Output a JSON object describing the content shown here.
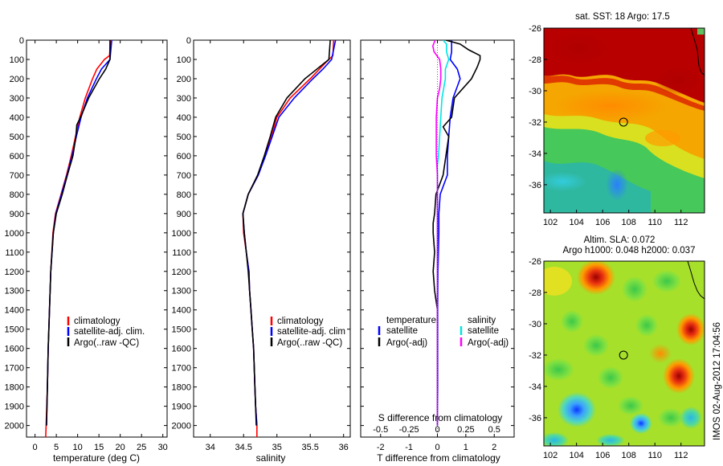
{
  "chart_data": [
    {
      "type": "line",
      "name": "temperature_profile",
      "xlabel": "temperature (deg C)",
      "xlim": [
        -2,
        31
      ],
      "xticks": [
        0,
        5,
        10,
        15,
        20,
        25,
        30
      ],
      "ylim": [
        2060,
        0
      ],
      "yticks": [
        0,
        100,
        200,
        300,
        400,
        500,
        600,
        700,
        800,
        900,
        1000,
        1100,
        1200,
        1300,
        1400,
        1500,
        1600,
        1700,
        1800,
        1900,
        2000
      ],
      "legend": [
        "climatology",
        "satellite-adj. clim.",
        "Argo(..raw -QC)"
      ],
      "series": [
        {
          "name": "climatology",
          "color": "#ff0000",
          "depth": [
            0,
            80,
            100,
            150,
            200,
            300,
            400,
            500,
            600,
            700,
            800,
            900,
            1000,
            1200,
            1400,
            1600,
            1800,
            2000,
            2060
          ],
          "values": [
            17.7,
            17.5,
            16.3,
            14.5,
            13.5,
            11.8,
            10.5,
            9.5,
            8.5,
            7.4,
            6.1,
            4.8,
            4.2,
            3.7,
            3.4,
            3.1,
            2.9,
            2.6,
            2.5
          ]
        },
        {
          "name": "satellite-adj. clim.",
          "color": "#0000ff",
          "depth": [
            0,
            100,
            150,
            200,
            300,
            400,
            500,
            600,
            700,
            800,
            900,
            1000,
            1200,
            1400,
            1600,
            1800,
            2000
          ],
          "values": [
            18.0,
            17.6,
            15.6,
            14.4,
            12.3,
            10.8,
            9.7,
            8.7,
            7.5,
            6.2,
            4.9,
            4.3,
            3.7,
            3.4,
            3.1,
            2.9,
            2.7
          ]
        },
        {
          "name": "Argo(..raw -QC)",
          "color": "#000000",
          "depth": [
            0,
            100,
            150,
            200,
            300,
            400,
            440,
            500,
            600,
            700,
            800,
            900,
            1000,
            1200,
            1400,
            1600,
            1800,
            2000
          ],
          "values": [
            17.6,
            17.6,
            16.6,
            15.1,
            12.6,
            10.7,
            9.8,
            9.6,
            8.9,
            7.6,
            6.4,
            5.0,
            4.3,
            3.7,
            3.4,
            3.1,
            2.9,
            2.7
          ]
        }
      ]
    },
    {
      "type": "line",
      "name": "salinity_profile",
      "xlabel": "salinity",
      "xlim": [
        33.75,
        36.1
      ],
      "xticks": [
        34,
        34.5,
        35,
        35.5,
        36
      ],
      "ylim": [
        2060,
        0
      ],
      "yticks": [
        0,
        100,
        200,
        300,
        400,
        500,
        600,
        700,
        800,
        900,
        1000,
        1100,
        1200,
        1300,
        1400,
        1500,
        1600,
        1700,
        1800,
        1900,
        2000
      ],
      "legend": [
        "climatology",
        "satellite-adj. clim",
        "Argo(..raw -QC)"
      ],
      "series": [
        {
          "name": "climatology",
          "color": "#ff0000",
          "depth": [
            0,
            80,
            120,
            200,
            300,
            400,
            500,
            600,
            700,
            800,
            900,
            1000,
            1100,
            1200,
            1300,
            1400,
            1500,
            1600,
            1700,
            1800,
            1900,
            2000,
            2060
          ],
          "values": [
            35.85,
            35.84,
            35.72,
            35.5,
            35.2,
            35.0,
            34.92,
            34.82,
            34.72,
            34.57,
            34.49,
            34.5,
            34.54,
            34.58,
            34.59,
            34.61,
            34.63,
            34.65,
            34.66,
            34.67,
            34.68,
            34.7,
            34.7
          ]
        },
        {
          "name": "satellite-adj. clim",
          "color": "#0000ff",
          "depth": [
            0,
            100,
            150,
            200,
            300,
            400,
            500,
            600,
            700,
            800,
            900,
            1000,
            1100,
            1200,
            1300,
            1400,
            1500,
            1600,
            1700,
            1800,
            1900,
            2000
          ],
          "values": [
            35.88,
            35.82,
            35.69,
            35.54,
            35.26,
            35.03,
            34.93,
            34.83,
            34.72,
            34.57,
            34.49,
            34.51,
            34.54,
            34.58,
            34.59,
            34.61,
            34.63,
            34.65,
            34.66,
            34.67,
            34.68,
            34.7
          ]
        },
        {
          "name": "Argo(..raw -QC)",
          "color": "#000000",
          "depth": [
            0,
            100,
            200,
            300,
            400,
            500,
            600,
            700,
            800,
            900,
            1000,
            1100,
            1200,
            1300,
            1400,
            1500,
            1600,
            1700,
            1800,
            1900,
            2000
          ],
          "values": [
            35.8,
            35.78,
            35.42,
            35.15,
            34.98,
            34.9,
            34.81,
            34.71,
            34.57,
            34.49,
            34.51,
            34.54,
            34.57,
            34.59,
            34.61,
            34.63,
            34.65,
            34.66,
            34.67,
            34.68,
            34.69
          ]
        }
      ]
    },
    {
      "type": "line",
      "name": "difference_from_climatology",
      "xlabel": "T difference from climatology",
      "xlabel_upper": "S difference from climatology",
      "xlim": [
        -2.7,
        2.7
      ],
      "xticks": [
        -2,
        -1,
        0,
        1,
        2
      ],
      "xticks_s": [
        -0.5,
        -0.25,
        0,
        0.25,
        0.5
      ],
      "ylim": [
        2060,
        0
      ],
      "legend_titles": [
        "temperature",
        "salinity"
      ],
      "legend": [
        "satellite",
        "Argo(-adj)",
        "satellite",
        "Argo(-adj)"
      ],
      "series": [
        {
          "name": "temperature satellite",
          "color": "#0000ff",
          "depth": [
            0,
            20,
            60,
            100,
            150,
            200,
            300,
            400,
            500,
            600,
            700,
            800,
            900,
            1000,
            1200,
            1400,
            1600,
            1800,
            2000
          ],
          "values": [
            0.5,
            0.5,
            0.5,
            0.45,
            0.7,
            0.8,
            0.55,
            0.45,
            0.4,
            0.35,
            0.35,
            0.1,
            0.05,
            0.05,
            0.02,
            0.01,
            0.01,
            0.01,
            0.0
          ]
        },
        {
          "name": "temperature Argo(-adj)",
          "color": "#000000",
          "depth": [
            0,
            20,
            50,
            80,
            100,
            140,
            200,
            300,
            400,
            450,
            500,
            600,
            700,
            800,
            900,
            950,
            1000,
            1100,
            1200,
            1300,
            1400,
            1600,
            1800,
            2000
          ],
          "values": [
            0.3,
            0.8,
            1.1,
            1.5,
            1.5,
            1.4,
            1.2,
            0.6,
            0.5,
            0.2,
            0.4,
            0.3,
            0.2,
            -0.05,
            -0.1,
            -0.15,
            -0.15,
            -0.1,
            -0.15,
            -0.1,
            0.0,
            0.0,
            0.0,
            0.0
          ]
        },
        {
          "name": "salinity satellite",
          "color": "#00e5e5",
          "depth": [
            0,
            20,
            60,
            100,
            150,
            200,
            300,
            400,
            500,
            600,
            650,
            700,
            800,
            1000,
            1500,
            2000
          ],
          "values": [
            0.05,
            0.08,
            0.08,
            0.1,
            0.07,
            0.07,
            0.04,
            0.03,
            0.02,
            0.01,
            0.0,
            0.0,
            0.0,
            0.0,
            0.0,
            0.0
          ]
        },
        {
          "name": "salinity Argo(-adj)",
          "color": "#ff00ff",
          "depth": [
            0,
            30,
            60,
            100,
            150,
            200,
            250,
            300,
            400,
            500,
            600,
            700,
            800,
            1000,
            1500,
            2000
          ],
          "values": [
            -0.02,
            -0.04,
            -0.03,
            0.02,
            0.03,
            0.03,
            0.02,
            0.0,
            -0.01,
            -0.01,
            -0.01,
            0.0,
            0.0,
            0.0,
            0.0,
            0.0
          ]
        }
      ]
    },
    {
      "type": "heatmap",
      "name": "sst_map",
      "title": "sat. SST: 18 Argo: 17.5",
      "xticks": [
        102,
        104,
        106,
        108,
        110,
        112
      ],
      "yticks": [
        -26,
        -28,
        -30,
        -32,
        -34,
        -36
      ],
      "xlim": [
        101.5,
        113.8
      ],
      "ylim": [
        -37.8,
        -26
      ],
      "argo_position": [
        107.6,
        -32
      ]
    },
    {
      "type": "heatmap",
      "name": "sla_map",
      "title": "Altim. SLA: 0.072",
      "subtitle": "Argo h1000: 0.048 h2000: 0.037",
      "xticks": [
        102,
        104,
        106,
        108,
        110,
        112
      ],
      "yticks": [
        -26,
        -28,
        -30,
        -32,
        -34,
        -36
      ],
      "xlim": [
        101.5,
        113.8
      ],
      "ylim": [
        -37.8,
        -26
      ],
      "argo_position": [
        107.6,
        -32
      ]
    }
  ],
  "footer": "IMOS 02-Aug-2012 17:04:56"
}
